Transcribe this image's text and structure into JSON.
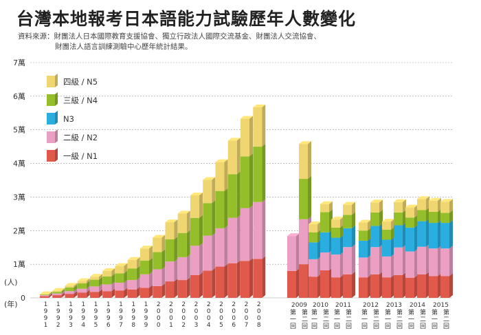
{
  "title": "台灣本地報考日本語能力試驗歷年人數變化",
  "source_lines": [
    "資料來源：財團法人日本國際教育支援協會、獨立行政法人國際交流基金、財團法人交流協會、",
    "財團法人語言訓練測驗中心歷年統計結果。"
  ],
  "colors": {
    "n5": "#f0d670",
    "n4": "#94bf2a",
    "n3": "#2aaee0",
    "n2": "#eba0c3",
    "n1": "#e1594a"
  },
  "chart_data": {
    "type": "bar",
    "stacked": true,
    "ylim": [
      0,
      70000
    ],
    "yticks": [
      {
        "value": 0,
        "label": "0"
      },
      {
        "value": 10000,
        "label": "1萬"
      },
      {
        "value": 20000,
        "label": "2萬"
      },
      {
        "value": 30000,
        "label": "3萬"
      },
      {
        "value": 40000,
        "label": "4萬"
      },
      {
        "value": 50000,
        "label": "5萬"
      },
      {
        "value": 60000,
        "label": "6萬"
      },
      {
        "value": 70000,
        "label": "7萬"
      }
    ],
    "ylabel": "(人)",
    "xlabel": "(年)",
    "legend_position": "top-left",
    "legend": [
      "四級 / N5",
      "三級 / N4",
      "N3",
      "二級 / N2",
      "一級 / N1"
    ],
    "year_labels": [
      "1991",
      "1992",
      "1993",
      "1994",
      "1995",
      "1996",
      "1997",
      "1998",
      "1999",
      "2000",
      "2001",
      "2002",
      "2003",
      "2004",
      "2005",
      "2006",
      "2007",
      "2008",
      "2009",
      "2010",
      "2011",
      "2012",
      "2013",
      "2014",
      "2015"
    ],
    "session_label": "第一回 / 第二回",
    "categories": [
      "1991",
      "1992",
      "1993",
      "1994",
      "1995",
      "1996",
      "1997",
      "1998",
      "1999",
      "2000",
      "2001",
      "2002",
      "2003",
      "2004",
      "2005",
      "2006",
      "2007",
      "2008",
      "2009 第一回",
      "2009 第二回",
      "2010 第一回",
      "2010 第二回",
      "2011 第一回",
      "2011 第二回",
      "2012 第一回",
      "2012 第二回",
      "2013 第一回",
      "2013 第二回",
      "2014 第一回",
      "2014 第二回",
      "2015 第一回",
      "2015 第二回"
    ],
    "series": [
      {
        "name": "一級 / N1",
        "values": [
          500,
          800,
          1200,
          1600,
          1800,
          2000,
          2200,
          2500,
          3000,
          3500,
          4900,
          5300,
          6800,
          8100,
          9300,
          10300,
          11000,
          11600,
          8000,
          10000,
          6300,
          8200,
          6100,
          7000,
          6100,
          7000,
          6100,
          6800,
          6000,
          7000,
          6500,
          6500
        ]
      },
      {
        "name": "二級 / N2",
        "values": [
          300,
          500,
          800,
          1100,
          1600,
          2000,
          2300,
          2800,
          4000,
          5000,
          5900,
          6800,
          8700,
          10400,
          11400,
          13500,
          15700,
          16900,
          10400,
          13400,
          5200,
          5300,
          6800,
          8100,
          5900,
          8100,
          6200,
          8200,
          7800,
          8200,
          8200,
          8200
        ]
      },
      {
        "name": "N3",
        "values": [
          0,
          0,
          0,
          0,
          0,
          0,
          0,
          0,
          0,
          0,
          0,
          0,
          0,
          0,
          0,
          0,
          0,
          0,
          0,
          0,
          5000,
          6000,
          5000,
          5600,
          5000,
          6300,
          5000,
          6600,
          7100,
          7600,
          7600,
          7600
        ]
      },
      {
        "name": "三級 / N4",
        "values": [
          200,
          500,
          1100,
          1600,
          2000,
          2400,
          2800,
          3400,
          4100,
          5100,
          6600,
          7200,
          8300,
          9700,
          11100,
          13000,
          15400,
          16500,
          0,
          12000,
          3000,
          6000,
          3000,
          4000,
          3000,
          4000,
          3000,
          3800,
          3000,
          3300,
          3300,
          3000
        ]
      },
      {
        "name": "四級 / N5",
        "values": [
          100,
          300,
          500,
          700,
          900,
          1600,
          2200,
          2600,
          3600,
          4300,
          5100,
          5800,
          6700,
          6900,
          8600,
          10000,
          11200,
          11700,
          0,
          10400,
          2400,
          2400,
          2400,
          3000,
          2400,
          3000,
          2400,
          3100,
          3000,
          3300,
          3300,
          3300
        ]
      }
    ]
  }
}
